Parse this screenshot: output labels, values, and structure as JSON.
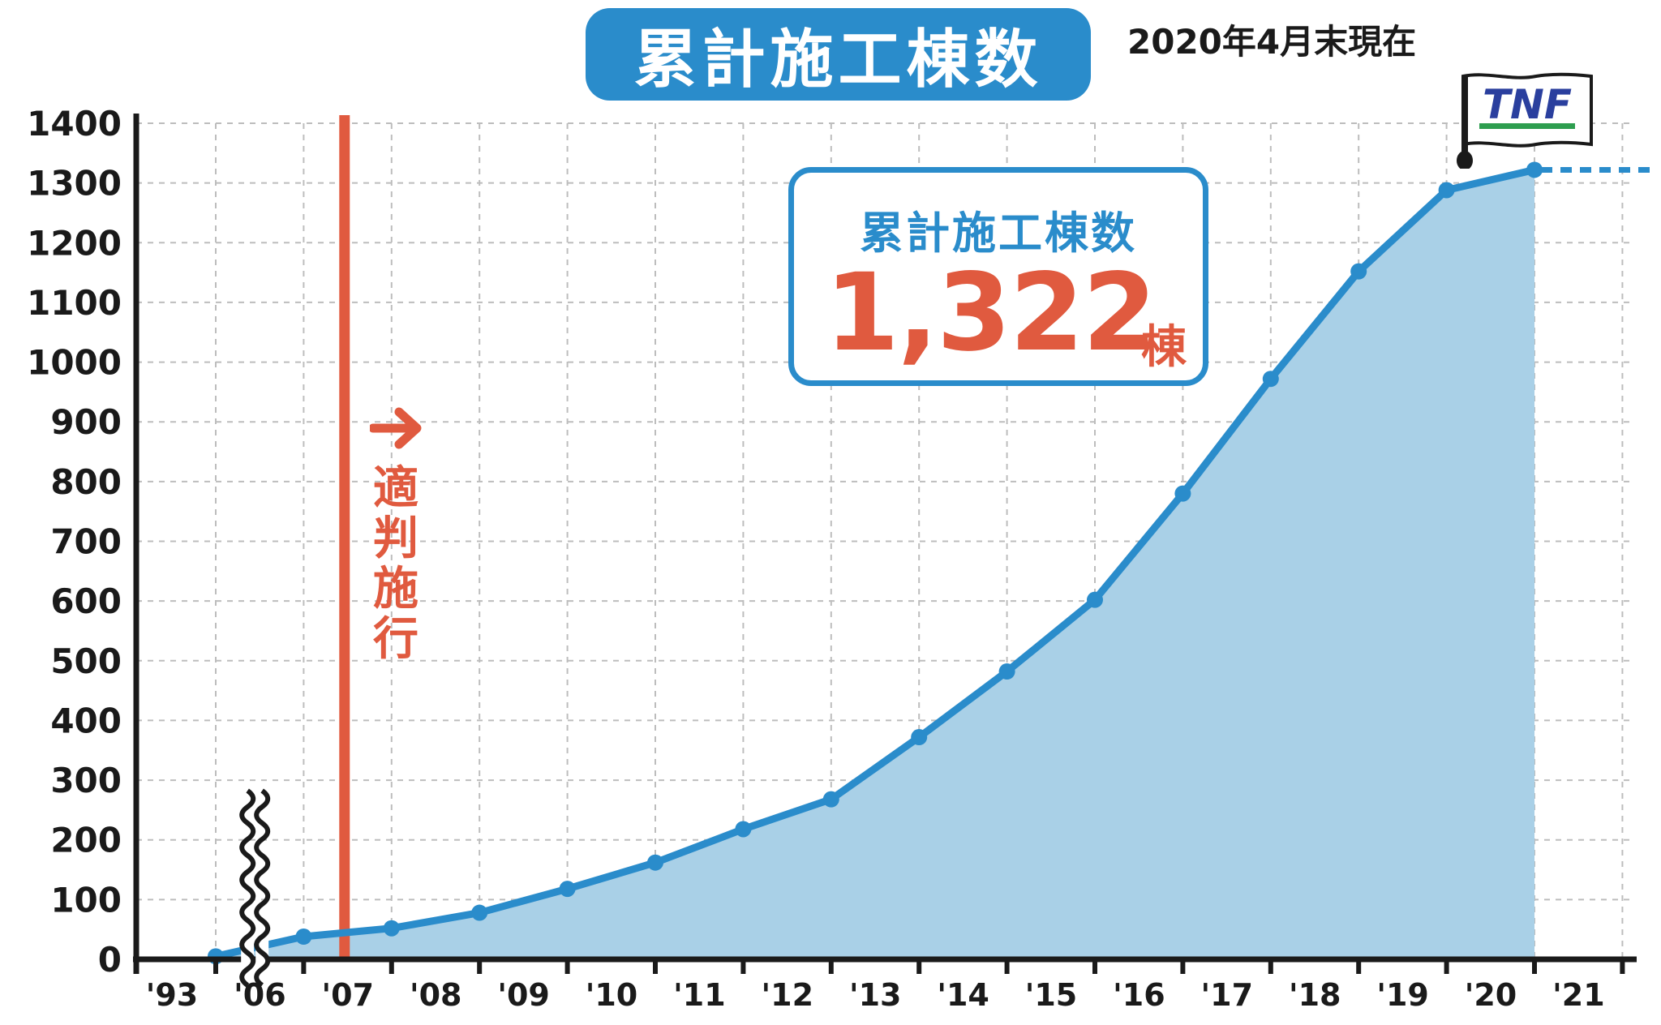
{
  "title": "累計施工棟数",
  "as_of": "2020年4月末現在",
  "total_box": {
    "label": "累計施工棟数",
    "value": "1,322",
    "unit": "棟"
  },
  "event": {
    "label": "適判施行",
    "x_category": "'07"
  },
  "flag": {
    "text": "TNF"
  },
  "colors": {
    "accent": "#2a8ccb",
    "area": "#a9d0e7",
    "event": "#e05a3f",
    "axis": "#1a1a1a",
    "grid": "#bdbdbd",
    "flag_text": "#2a3f9e",
    "flag_stripe": "#2e9e4f"
  },
  "chart_data": {
    "type": "area",
    "categories": [
      "'93",
      "'06",
      "'07",
      "'08",
      "'09",
      "'10",
      "'11",
      "'12",
      "'13",
      "'14",
      "'15",
      "'16",
      "'17",
      "'18",
      "'19",
      "'20",
      "'21"
    ],
    "series": [
      {
        "x": [
          0,
          1,
          2,
          3,
          4,
          5,
          6,
          7,
          8,
          9,
          10,
          11,
          12,
          13,
          14,
          15
        ],
        "values": [
          5,
          38,
          52,
          78,
          118,
          162,
          218,
          268,
          372,
          482,
          602,
          780,
          972,
          1152,
          1288,
          1322
        ]
      }
    ],
    "yticks": [
      0,
      100,
      200,
      300,
      400,
      500,
      600,
      700,
      800,
      900,
      1000,
      1100,
      1200,
      1300,
      1400
    ],
    "ylim": [
      0,
      1400
    ],
    "axis_break_between": [
      "'93",
      "'06"
    ],
    "current_value_line": 1322,
    "grid": true,
    "title": "",
    "xlabel": "",
    "ylabel": ""
  }
}
